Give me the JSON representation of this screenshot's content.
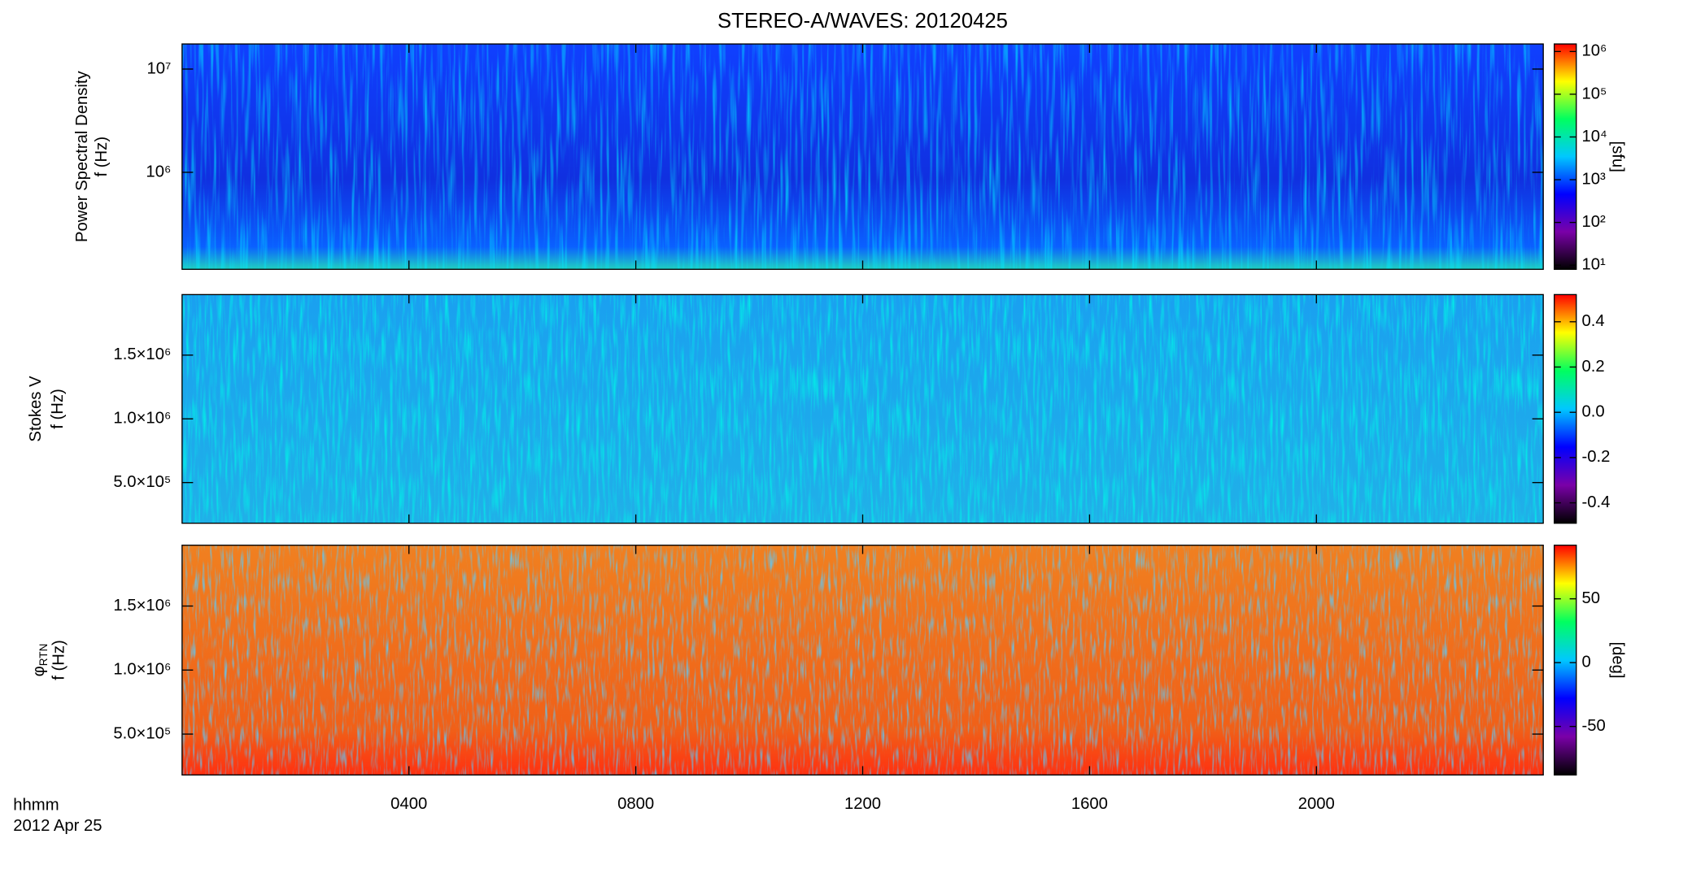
{
  "chart_data": [
    {
      "type": "heatmap",
      "title": "STEREO-A/WAVES: 20120425",
      "ylabel": [
        "Power Spectral Density",
        "f (Hz)"
      ],
      "ylog": true,
      "ylim": [
        115000,
        17500000
      ],
      "yticks": [
        {
          "value": 1000000,
          "label": "10⁶"
        },
        {
          "value": 10000000,
          "label": "10⁷"
        }
      ],
      "colormap": [
        "#000000",
        "#7a00a8",
        "#0000ff",
        "#00c8ff",
        "#00ff60",
        "#ffff00",
        "#ff0000"
      ],
      "colorbar": {
        "log": true,
        "lim": [
          8,
          1500000
        ],
        "label": "[sfu]",
        "ticks": [
          {
            "value": 10,
            "label": "10¹"
          },
          {
            "value": 100,
            "label": "10²"
          },
          {
            "value": 1000,
            "label": "10³"
          },
          {
            "value": 10000,
            "label": "10⁴"
          },
          {
            "value": 100000,
            "label": "10⁵"
          },
          {
            "value": 1000000,
            "label": "10⁶"
          }
        ]
      }
    },
    {
      "type": "heatmap",
      "ylabel": [
        "Stokes V",
        "f (Hz)"
      ],
      "ylog": false,
      "ylim": [
        181000,
        1975000
      ],
      "yticks": [
        {
          "value": 500000,
          "label": "5.0×10⁵"
        },
        {
          "value": 1000000,
          "label": "1.0×10⁶"
        },
        {
          "value": 1500000,
          "label": "1.5×10⁶"
        }
      ],
      "colormap": [
        "#000000",
        "#7a00a8",
        "#0000ff",
        "#00c8ff",
        "#00ff60",
        "#ffff00",
        "#ff0000"
      ],
      "colorbar": {
        "log": false,
        "lim": [
          -0.49,
          0.52
        ],
        "ticks": [
          {
            "value": -0.4,
            "label": "-0.4"
          },
          {
            "value": -0.2,
            "label": "-0.2"
          },
          {
            "value": 0,
            "label": "0.0"
          },
          {
            "value": 0.2,
            "label": "0.2"
          },
          {
            "value": 0.4,
            "label": "0.4"
          }
        ]
      }
    },
    {
      "type": "heatmap",
      "ylabel": [
        "φ",
        "f (Hz)"
      ],
      "ylabel_subscript": "RTN",
      "ylog": false,
      "ylim": [
        181000,
        1975000
      ],
      "yticks": [
        {
          "value": 500000,
          "label": "5.0×10⁵"
        },
        {
          "value": 1000000,
          "label": "1.0×10⁶"
        },
        {
          "value": 1500000,
          "label": "1.5×10⁶"
        }
      ],
      "colormap": [
        "#000000",
        "#7a00a8",
        "#0000ff",
        "#00c8ff",
        "#00ff60",
        "#ffff00",
        "#ff0000"
      ],
      "colorbar": {
        "log": false,
        "lim": [
          -88,
          92
        ],
        "label": "[deg]",
        "ticks": [
          -50,
          0,
          50
        ]
      },
      "xlim": [
        0,
        24
      ],
      "xticks": [
        {
          "value": 4,
          "label": "0400"
        },
        {
          "value": 8,
          "label": "0800"
        },
        {
          "value": 12,
          "label": "1200"
        },
        {
          "value": 16,
          "label": "1600"
        },
        {
          "value": 20,
          "label": "2000"
        }
      ],
      "xlabel": "hhmm",
      "date": "2012 Apr 25"
    }
  ]
}
